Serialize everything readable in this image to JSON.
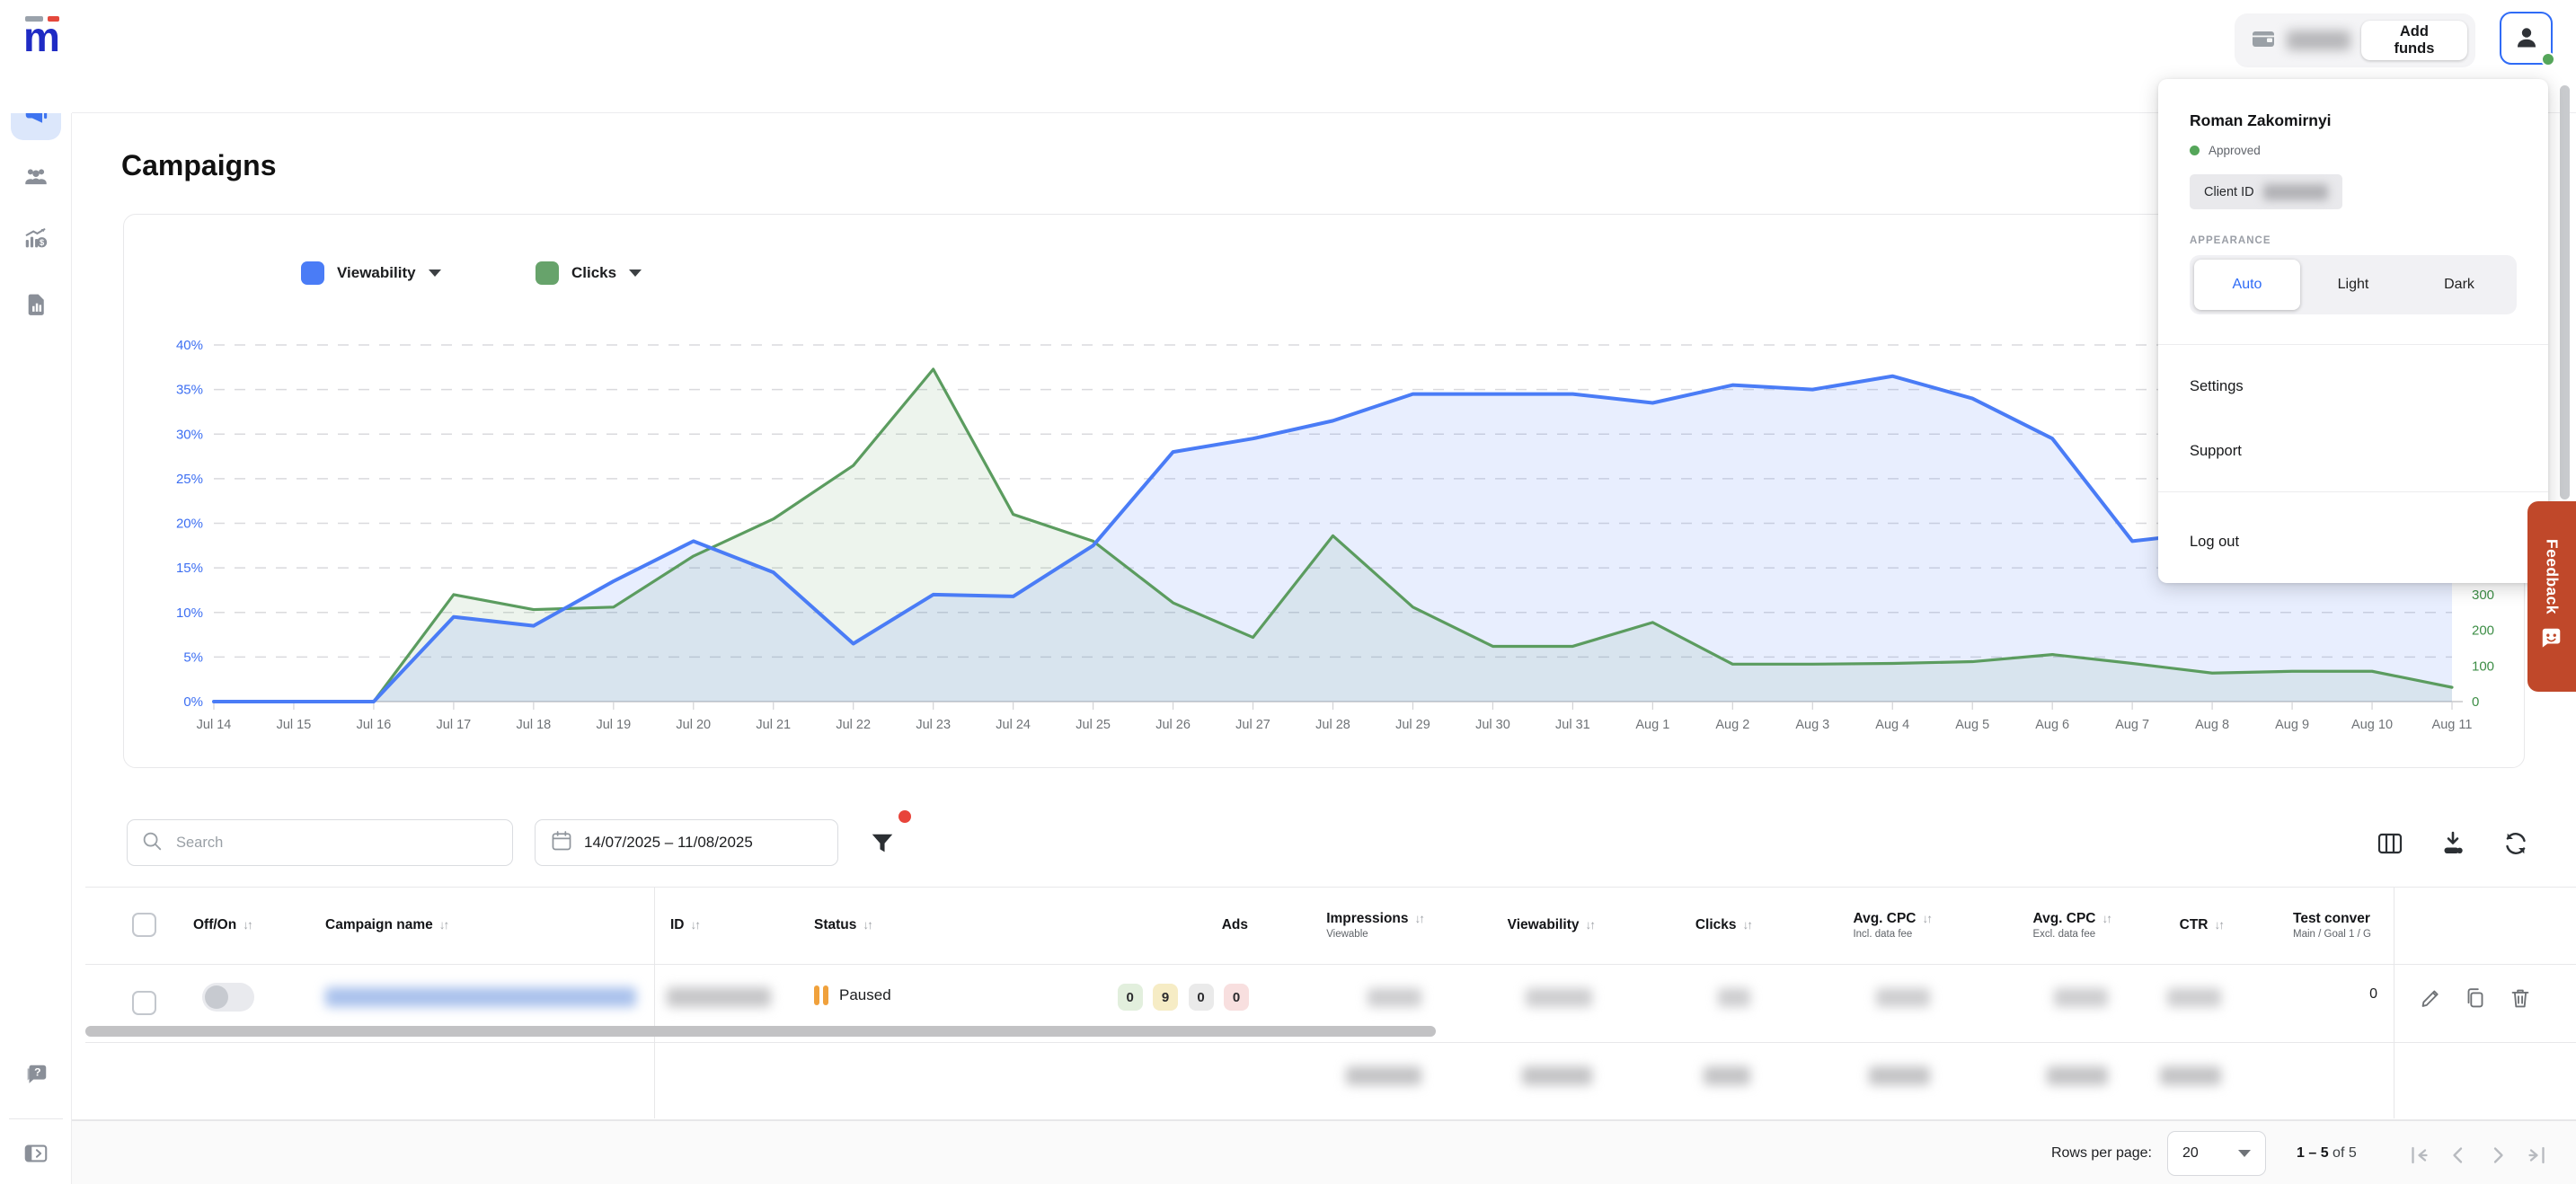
{
  "topbar": {
    "logo_text": "m",
    "balance_redacted": true,
    "add_funds_label": "Add funds"
  },
  "sidebar": {
    "items": [
      {
        "name": "campaigns",
        "active": true
      },
      {
        "name": "audiences",
        "active": false
      },
      {
        "name": "performance",
        "active": false
      },
      {
        "name": "reports",
        "active": false
      },
      {
        "name": "help",
        "active": false
      },
      {
        "name": "collapse-sidebar",
        "active": false
      }
    ]
  },
  "page": {
    "title": "Campaigns"
  },
  "chart_legend": {
    "series": [
      {
        "label": "Viewability",
        "color": "#4a7cf6"
      },
      {
        "label": "Clicks",
        "color": "#67a36b"
      }
    ]
  },
  "chart_data": {
    "type": "line",
    "title": "",
    "categories": [
      "Jul 14",
      "Jul 15",
      "Jul 16",
      "Jul 17",
      "Jul 18",
      "Jul 19",
      "Jul 20",
      "Jul 21",
      "Jul 22",
      "Jul 23",
      "Jul 24",
      "Jul 25",
      "Jul 26",
      "Jul 27",
      "Jul 28",
      "Jul 29",
      "Jul 30",
      "Jul 31",
      "Aug 1",
      "Aug 2",
      "Aug 3",
      "Aug 4",
      "Aug 5",
      "Aug 6",
      "Aug 7",
      "Aug 8",
      "Aug 9",
      "Aug 10",
      "Aug 11"
    ],
    "series": [
      {
        "name": "Viewability",
        "axis": "left",
        "unit": "%",
        "color": "#4a7cf6",
        "fill": "rgba(77,124,246,0.13)",
        "values": [
          0,
          0,
          0,
          9.5,
          8.5,
          13.5,
          18,
          14.5,
          6.5,
          12,
          11.8,
          17.5,
          28,
          29.5,
          31.5,
          34.5,
          34.5,
          34.5,
          33.5,
          35.5,
          35,
          36.5,
          34,
          29.5,
          18,
          19,
          19.5,
          19,
          18.5
        ]
      },
      {
        "name": "Clicks",
        "axis": "right",
        "unit": "count",
        "color": "#5b9c5f",
        "fill": "rgba(106,165,108,0.12)",
        "values": [
          0,
          0,
          0,
          300,
          258,
          265,
          408,
          512,
          662,
          932,
          525,
          450,
          277,
          180,
          465,
          265,
          155,
          155,
          222,
          105,
          105,
          107,
          112,
          132,
          107,
          80,
          85,
          85,
          40
        ]
      }
    ],
    "left_axis": {
      "min": 0,
      "max": 40,
      "tick_labels": [
        "0%",
        "5%",
        "10%",
        "15%",
        "20%",
        "25%",
        "30%",
        "35%",
        "40%"
      ],
      "tick_values": [
        0,
        5,
        10,
        15,
        20,
        25,
        30,
        35,
        40
      ],
      "color": "#3d6ff2"
    },
    "right_axis": {
      "min": 0,
      "max": 1000,
      "tick_labels": [
        "0",
        "100",
        "200",
        "300"
      ],
      "tick_values": [
        0,
        100,
        200,
        300
      ],
      "color": "#3e8e47"
    },
    "grid": "horizontal-dashed",
    "legend_position": "top-left"
  },
  "controls": {
    "search_placeholder": "Search",
    "date_range": "14/07/2025 – 11/08/2025",
    "filter_has_notification": true
  },
  "table": {
    "columns": [
      {
        "label": "Off/On",
        "sublabel": "",
        "sortable": true
      },
      {
        "label": "Campaign name",
        "sublabel": "",
        "sortable": true
      },
      {
        "label": "ID",
        "sublabel": "",
        "sortable": true
      },
      {
        "label": "Status",
        "sublabel": "",
        "sortable": true
      },
      {
        "label": "Ads",
        "sublabel": "",
        "sortable": false
      },
      {
        "label": "Impressions",
        "sublabel": "Viewable",
        "sortable": true
      },
      {
        "label": "Viewability",
        "sublabel": "",
        "sortable": true
      },
      {
        "label": "Clicks",
        "sublabel": "",
        "sortable": true
      },
      {
        "label": "Avg. CPC",
        "sublabel": "Incl. data fee",
        "sortable": true
      },
      {
        "label": "Avg. CPC",
        "sublabel": "Excl. data fee",
        "sortable": true
      },
      {
        "label": "CTR",
        "sublabel": "",
        "sortable": true
      },
      {
        "label": "Test conver",
        "sublabel": "Main / Goal 1 / G",
        "sortable": false
      }
    ],
    "row": {
      "toggle_on": false,
      "campaign_name_redacted": true,
      "id_redacted": true,
      "status": "Paused",
      "ads_badges": [
        {
          "value": "0",
          "type": "green"
        },
        {
          "value": "9",
          "type": "yellow"
        },
        {
          "value": "0",
          "type": "neutral"
        },
        {
          "value": "0",
          "type": "red"
        }
      ],
      "metrics_redacted": true,
      "test_conversions": "0"
    },
    "summary_redacted": true
  },
  "pagination": {
    "rows_per_page_label": "Rows per page:",
    "rows_per_page": "20",
    "range_bold": "1 – 5",
    "range_rest": "of 5"
  },
  "user_menu": {
    "user_name": "Roman Zakomirnyi",
    "account_status": "Approved",
    "client_id_label": "Client ID",
    "client_id_redacted": true,
    "appearance_label": "APPEARANCE",
    "theme_options": [
      "Auto",
      "Light",
      "Dark"
    ],
    "active_theme": "Auto",
    "items": [
      "Settings",
      "Support",
      "Log out"
    ]
  },
  "feedback_label": "Feedback"
}
